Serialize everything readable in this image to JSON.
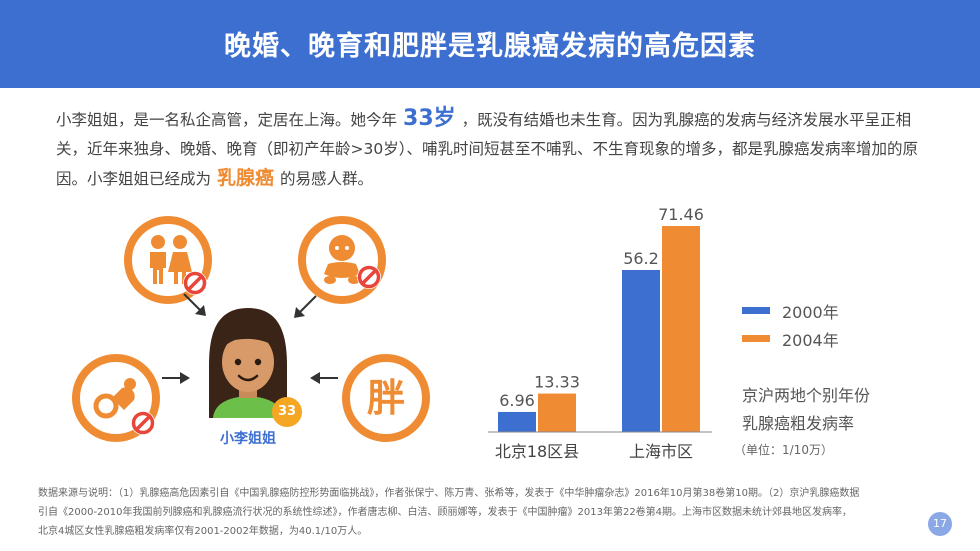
{
  "title": "晚婚、晚育和肥胖是乳腺癌发病的高危因素",
  "intro": {
    "part1": "小李姐姐，是一名私企高管，定居在上海。她今年",
    "age": "33岁",
    "part2": "，既没有结婚也未生育。因为乳腺癌的发病与经济发展水平呈正相关，近年来独身、晚婚、晚育（即初产年龄>30岁）、哺乳时间短甚至不哺乳、不生育现象的增多，都是乳腺癌发病率增加的原因。小李姐姐已经成为",
    "highlight": "乳腺癌",
    "part3": "的易感人群。"
  },
  "factors": {
    "fat_char": "胖",
    "icons": [
      "couple-icon",
      "baby-icon",
      "pacifier-icon",
      "prohibited-icon"
    ]
  },
  "person": {
    "name": "小李姐姐",
    "age_badge": "33"
  },
  "chart_data": {
    "type": "bar",
    "categories": [
      "北京18区县",
      "上海市区"
    ],
    "series": [
      {
        "name": "2000年",
        "values": [
          6.96,
          56.2
        ],
        "color": "#3d6fd0"
      },
      {
        "name": "2004年",
        "values": [
          13.33,
          71.46
        ],
        "color": "#ef8c33"
      }
    ],
    "value_labels": [
      [
        "6.96",
        "56.2"
      ],
      [
        "13.33",
        "71.46"
      ]
    ],
    "title_line1": "京沪两地个别年份",
    "title_line2": "乳腺癌粗发病率",
    "unit": "（单位：1/10万）",
    "legend_position": "right",
    "grid": false
  },
  "footnote": {
    "line1": "数据来源与说明：（1）乳腺癌高危因素引自《中国乳腺癌防控形势面临挑战》，作者张保宁、陈万青、张希等，发表于《中华肿瘤杂志》2016年10月第38卷第10期。（2）京沪乳腺癌数据",
    "line2": "引自《2000-2010年我国前列腺癌和乳腺癌流行状况的系统性综述》，作者唐志柳、白洁、顾丽娜等，发表于《中国肿瘤》2013年第22卷第4期。上海市区数据未统计郊县地区发病率，",
    "line3": "北京4城区女性乳腺癌粗发病率仅有2001-2002年数据，为40.1/10万人。"
  },
  "page_number": "17"
}
